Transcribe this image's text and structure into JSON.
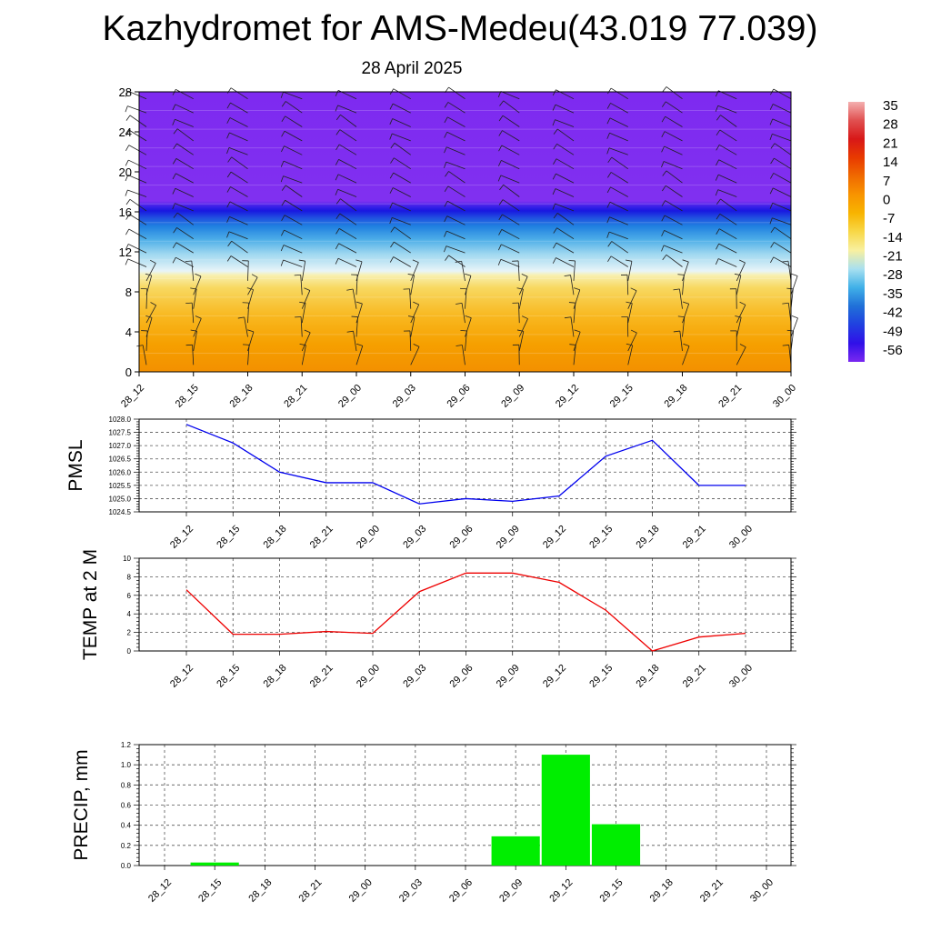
{
  "title": "Kazhydromet for AMS-Medeu(43.019 77.039)",
  "subtitle": "28 April 2025",
  "colors": {
    "pmsl": "#0000ee",
    "temp": "#ee0000",
    "precip": "#00ee00",
    "grid": "#555555"
  },
  "chart_data": [
    {
      "type": "heatmap",
      "title": "",
      "x_ticks": [
        "28_12",
        "28_15",
        "28_18",
        "28_21",
        "29_00",
        "29_03",
        "29_06",
        "29_09",
        "29_12",
        "29_15",
        "29_18",
        "29_21",
        "30_00"
      ],
      "y_ticks": [
        0,
        4,
        8,
        12,
        16,
        20,
        24,
        28
      ],
      "ylim": [
        0,
        28
      ],
      "color_levels": [
        35,
        28,
        21,
        14,
        7,
        0,
        -7,
        -14,
        -21,
        -28,
        -35,
        -42,
        -49,
        -56
      ],
      "colorbar_colors": [
        "#f4b0b0",
        "#e05050",
        "#d81818",
        "#e83a00",
        "#f06a00",
        "#f89400",
        "#f8b400",
        "#f8d848",
        "#f8f0a0",
        "#a8e0f0",
        "#40b0e8",
        "#2070d8",
        "#2040e0",
        "#3010e8",
        "#7a28f0"
      ],
      "wind_barbs": true,
      "grid": false
    },
    {
      "type": "line",
      "ylabel": "PMSL",
      "x": [
        "28_12",
        "28_15",
        "28_18",
        "28_21",
        "29_00",
        "29_03",
        "29_06",
        "29_09",
        "29_12",
        "29_15",
        "29_18",
        "29_21",
        "30_00"
      ],
      "values": [
        1027.8,
        1027.1,
        1026.0,
        1025.6,
        1025.6,
        1024.8,
        1025.0,
        1024.9,
        1025.1,
        1026.6,
        1027.2,
        1025.5,
        1025.5
      ],
      "ylim": [
        1024.5,
        1028.0
      ],
      "y_ticks": [
        "1028.0",
        "1027.5",
        "1027.0",
        "1026.5",
        "1026.0",
        "1025.5",
        "1025.0",
        "1024.5"
      ],
      "grid": true
    },
    {
      "type": "line",
      "ylabel": "TEMP at 2 M",
      "x": [
        "28_12",
        "28_15",
        "28_18",
        "28_21",
        "29_00",
        "29_03",
        "29_06",
        "29_09",
        "29_12",
        "29_15",
        "29_18",
        "29_21",
        "30_00"
      ],
      "values": [
        6.6,
        1.8,
        1.8,
        2.1,
        1.9,
        6.4,
        8.4,
        8.4,
        7.4,
        4.4,
        0.0,
        1.5,
        1.9
      ],
      "ylim": [
        0,
        10
      ],
      "y_ticks": [
        "10",
        "8",
        "6",
        "4",
        "2",
        "0"
      ],
      "grid": true
    },
    {
      "type": "bar",
      "ylabel": "PRECIP, mm",
      "categories": [
        "28_12",
        "28_15",
        "28_18",
        "28_21",
        "29_00",
        "29_03",
        "29_06",
        "29_09",
        "29_12",
        "29_15",
        "29_18",
        "29_21",
        "30_00"
      ],
      "values": [
        0,
        0.03,
        0,
        0,
        0,
        0,
        0,
        0.29,
        1.1,
        0.41,
        0,
        0,
        0
      ],
      "ylim": [
        0,
        1.2
      ],
      "y_ticks": [
        "1.2",
        "1.0",
        "0.8",
        "0.6",
        "0.4",
        "0.2",
        "0.0"
      ],
      "grid": true
    }
  ]
}
